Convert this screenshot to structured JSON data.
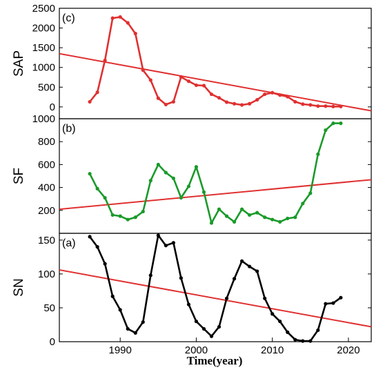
{
  "x_axis": {
    "label": "Time(year)",
    "range": [
      1982,
      2023
    ],
    "ticks": [
      1990,
      2000,
      2010,
      2020
    ]
  },
  "chart_data": [
    {
      "type": "line",
      "panel_label": "(c)",
      "ylabel": "SAP",
      "ylim": [
        -300,
        2500
      ],
      "yticks": [
        0,
        500,
        1000,
        1500,
        2000,
        2500
      ],
      "line_color": "#e03030",
      "trend_color": "#e03030",
      "x": [
        1986,
        1987,
        1988,
        1989,
        1990,
        1991,
        1992,
        1993,
        1994,
        1995,
        1996,
        1997,
        1998,
        1999,
        2000,
        2001,
        2002,
        2003,
        2004,
        2005,
        2006,
        2007,
        2008,
        2009,
        2010,
        2011,
        2012,
        2013,
        2014,
        2015,
        2016,
        2017,
        2018,
        2019
      ],
      "values": [
        130,
        370,
        1180,
        2250,
        2280,
        2130,
        1860,
        930,
        680,
        220,
        60,
        130,
        760,
        650,
        550,
        540,
        320,
        230,
        120,
        80,
        50,
        80,
        180,
        320,
        360,
        300,
        260,
        130,
        70,
        50,
        20,
        20,
        10,
        10
      ],
      "trend": {
        "x": [
          1982,
          2023
        ],
        "y": [
          1350,
          -100
        ]
      }
    },
    {
      "type": "line",
      "panel_label": "(b)",
      "ylabel": "SF",
      "ylim": [
        0,
        1000
      ],
      "yticks": [
        200,
        400,
        600,
        800,
        1000
      ],
      "line_color": "#1a9a2a",
      "trend_color": "#e03030",
      "x": [
        1986,
        1987,
        1988,
        1989,
        1990,
        1991,
        1992,
        1993,
        1994,
        1995,
        1996,
        1997,
        1998,
        1999,
        2000,
        2001,
        2002,
        2003,
        2004,
        2005,
        2006,
        2007,
        2008,
        2009,
        2010,
        2011,
        2012,
        2013,
        2014,
        2015,
        2016,
        2017,
        2018,
        2019
      ],
      "values": [
        520,
        390,
        310,
        160,
        150,
        120,
        140,
        190,
        460,
        600,
        530,
        480,
        310,
        410,
        580,
        360,
        90,
        210,
        150,
        100,
        210,
        160,
        180,
        140,
        120,
        100,
        130,
        140,
        260,
        350,
        690,
        900,
        960,
        960
      ],
      "trend": {
        "x": [
          1982,
          2023
        ],
        "y": [
          210,
          468
        ]
      }
    },
    {
      "type": "line",
      "panel_label": "(a)",
      "ylabel": "SN",
      "ylim": [
        0,
        160
      ],
      "yticks": [
        0,
        50,
        100,
        150
      ],
      "line_color": "#000000",
      "trend_color": "#e03030",
      "x": [
        1986,
        1987,
        1988,
        1989,
        1990,
        1991,
        1992,
        1993,
        1994,
        1995,
        1996,
        1997,
        1998,
        1999,
        2000,
        2001,
        2002,
        2003,
        2004,
        2005,
        2006,
        2007,
        2008,
        2009,
        2010,
        2011,
        2012,
        2013,
        2014,
        2015,
        2016,
        2017,
        2018,
        2019
      ],
      "values": [
        155,
        140,
        115,
        67,
        47,
        19,
        13,
        29,
        98,
        157,
        142,
        146,
        94,
        55,
        30,
        19,
        8,
        22,
        64,
        93,
        119,
        111,
        104,
        64,
        41,
        30,
        14,
        3,
        1,
        1,
        17,
        56,
        57,
        65
      ],
      "trend": {
        "x": [
          1982,
          2023
        ],
        "y": [
          106,
          22
        ]
      }
    }
  ]
}
